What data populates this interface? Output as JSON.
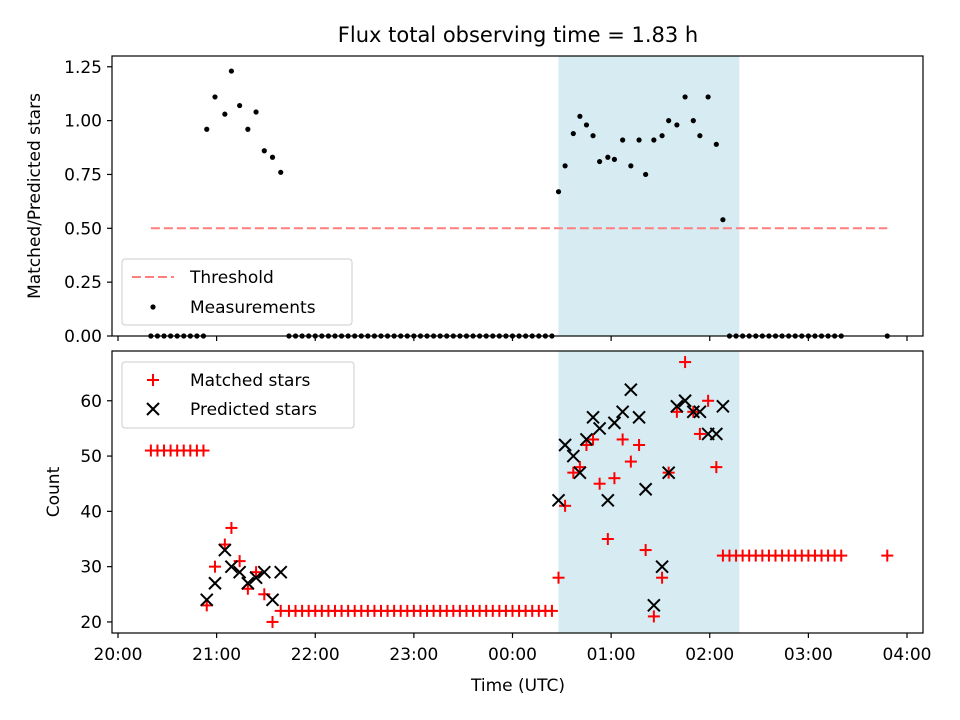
{
  "figure": {
    "title": "Flux total observing time = 1.83 h",
    "xlabel": "Time (UTC)"
  },
  "chart_data": [
    {
      "type": "scatter",
      "ylabel": "Matched/Predicted stars",
      "xlim": [
        "20:00",
        "04:15"
      ],
      "ylim": [
        0,
        1.3
      ],
      "yticks": [
        "0.00",
        "0.25",
        "0.50",
        "0.75",
        "1.00",
        "1.25"
      ],
      "grid": false,
      "legend": "lower-left",
      "highlight_span": {
        "start": "00:28",
        "end": "02:18",
        "color": "#add8e6"
      },
      "threshold": {
        "name": "Threshold",
        "value": 0.5,
        "x_start": "20:20",
        "x_end": "03:48",
        "color": "#ff7f7f"
      },
      "series": [
        {
          "name": "Measurements",
          "color": "#000000",
          "points": [
            [
              "20:20",
              0
            ],
            [
              "20:24",
              0
            ],
            [
              "20:28",
              0
            ],
            [
              "20:32",
              0
            ],
            [
              "20:36",
              0
            ],
            [
              "20:40",
              0
            ],
            [
              "20:44",
              0
            ],
            [
              "20:48",
              0
            ],
            [
              "20:52",
              0
            ],
            [
              "20:54",
              0.96
            ],
            [
              "20:59",
              1.11
            ],
            [
              "21:05",
              1.03
            ],
            [
              "21:09",
              1.23
            ],
            [
              "21:14",
              1.07
            ],
            [
              "21:19",
              0.96
            ],
            [
              "21:24",
              1.04
            ],
            [
              "21:29",
              0.86
            ],
            [
              "21:34",
              0.83
            ],
            [
              "21:39",
              0.76
            ],
            [
              "21:44",
              0
            ],
            [
              "21:48",
              0
            ],
            [
              "21:52",
              0
            ],
            [
              "21:56",
              0
            ],
            [
              "22:00",
              0
            ],
            [
              "22:04",
              0
            ],
            [
              "22:08",
              0
            ],
            [
              "22:12",
              0
            ],
            [
              "22:16",
              0
            ],
            [
              "22:20",
              0
            ],
            [
              "22:24",
              0
            ],
            [
              "22:28",
              0
            ],
            [
              "22:32",
              0
            ],
            [
              "22:36",
              0
            ],
            [
              "22:40",
              0
            ],
            [
              "22:44",
              0
            ],
            [
              "22:48",
              0
            ],
            [
              "22:52",
              0
            ],
            [
              "22:56",
              0
            ],
            [
              "23:00",
              0
            ],
            [
              "23:04",
              0
            ],
            [
              "23:08",
              0
            ],
            [
              "23:12",
              0
            ],
            [
              "23:16",
              0
            ],
            [
              "23:20",
              0
            ],
            [
              "23:24",
              0
            ],
            [
              "23:28",
              0
            ],
            [
              "23:32",
              0
            ],
            [
              "23:36",
              0
            ],
            [
              "23:40",
              0
            ],
            [
              "23:44",
              0
            ],
            [
              "23:48",
              0
            ],
            [
              "23:52",
              0
            ],
            [
              "23:56",
              0
            ],
            [
              "00:00",
              0
            ],
            [
              "00:04",
              0
            ],
            [
              "00:08",
              0
            ],
            [
              "00:12",
              0
            ],
            [
              "00:16",
              0
            ],
            [
              "00:20",
              0
            ],
            [
              "00:24",
              0
            ],
            [
              "00:28",
              0.67
            ],
            [
              "00:32",
              0.79
            ],
            [
              "00:37",
              0.94
            ],
            [
              "00:41",
              1.02
            ],
            [
              "00:45",
              0.98
            ],
            [
              "00:49",
              0.93
            ],
            [
              "00:53",
              0.81
            ],
            [
              "00:58",
              0.83
            ],
            [
              "01:02",
              0.82
            ],
            [
              "01:07",
              0.91
            ],
            [
              "01:12",
              0.79
            ],
            [
              "01:17",
              0.91
            ],
            [
              "01:21",
              0.75
            ],
            [
              "01:26",
              0.91
            ],
            [
              "01:31",
              0.93
            ],
            [
              "01:35",
              1.0
            ],
            [
              "01:40",
              0.98
            ],
            [
              "01:45",
              1.11
            ],
            [
              "01:50",
              1.0
            ],
            [
              "01:54",
              0.93
            ],
            [
              "01:59",
              1.11
            ],
            [
              "02:04",
              0.89
            ],
            [
              "02:08",
              0.54
            ],
            [
              "02:12",
              0
            ],
            [
              "02:16",
              0
            ],
            [
              "02:20",
              0
            ],
            [
              "02:24",
              0
            ],
            [
              "02:28",
              0
            ],
            [
              "02:32",
              0
            ],
            [
              "02:36",
              0
            ],
            [
              "02:40",
              0
            ],
            [
              "02:44",
              0
            ],
            [
              "02:48",
              0
            ],
            [
              "02:52",
              0
            ],
            [
              "02:56",
              0
            ],
            [
              "03:00",
              0
            ],
            [
              "03:04",
              0
            ],
            [
              "03:08",
              0
            ],
            [
              "03:12",
              0
            ],
            [
              "03:16",
              0
            ],
            [
              "03:20",
              0
            ],
            [
              "03:48",
              0
            ]
          ]
        }
      ]
    },
    {
      "type": "scatter",
      "ylabel": "Count",
      "xlim": [
        "20:00",
        "04:15"
      ],
      "ylim": [
        18,
        69
      ],
      "yticks": [
        "20",
        "30",
        "40",
        "50",
        "60"
      ],
      "xticks": [
        "20:00",
        "21:00",
        "22:00",
        "23:00",
        "00:00",
        "01:00",
        "02:00",
        "03:00",
        "04:00"
      ],
      "grid": false,
      "legend": "upper-left",
      "highlight_span": {
        "start": "00:28",
        "end": "02:18",
        "color": "#add8e6"
      },
      "series": [
        {
          "name": "Matched stars",
          "marker": "+",
          "color": "#ff0000",
          "points": [
            [
              "20:20",
              51
            ],
            [
              "20:24",
              51
            ],
            [
              "20:28",
              51
            ],
            [
              "20:32",
              51
            ],
            [
              "20:36",
              51
            ],
            [
              "20:40",
              51
            ],
            [
              "20:44",
              51
            ],
            [
              "20:48",
              51
            ],
            [
              "20:52",
              51
            ],
            [
              "20:54",
              23
            ],
            [
              "20:59",
              30
            ],
            [
              "21:05",
              34
            ],
            [
              "21:09",
              37
            ],
            [
              "21:14",
              31
            ],
            [
              "21:19",
              26
            ],
            [
              "21:24",
              29
            ],
            [
              "21:29",
              25
            ],
            [
              "21:34",
              20
            ],
            [
              "21:39",
              22
            ],
            [
              "21:44",
              22
            ],
            [
              "21:48",
              22
            ],
            [
              "21:52",
              22
            ],
            [
              "21:56",
              22
            ],
            [
              "22:00",
              22
            ],
            [
              "22:04",
              22
            ],
            [
              "22:08",
              22
            ],
            [
              "22:12",
              22
            ],
            [
              "22:16",
              22
            ],
            [
              "22:20",
              22
            ],
            [
              "22:24",
              22
            ],
            [
              "22:28",
              22
            ],
            [
              "22:32",
              22
            ],
            [
              "22:36",
              22
            ],
            [
              "22:40",
              22
            ],
            [
              "22:44",
              22
            ],
            [
              "22:48",
              22
            ],
            [
              "22:52",
              22
            ],
            [
              "22:56",
              22
            ],
            [
              "23:00",
              22
            ],
            [
              "23:04",
              22
            ],
            [
              "23:08",
              22
            ],
            [
              "23:12",
              22
            ],
            [
              "23:16",
              22
            ],
            [
              "23:20",
              22
            ],
            [
              "23:24",
              22
            ],
            [
              "23:28",
              22
            ],
            [
              "23:32",
              22
            ],
            [
              "23:36",
              22
            ],
            [
              "23:40",
              22
            ],
            [
              "23:44",
              22
            ],
            [
              "23:48",
              22
            ],
            [
              "23:52",
              22
            ],
            [
              "23:56",
              22
            ],
            [
              "00:00",
              22
            ],
            [
              "00:04",
              22
            ],
            [
              "00:08",
              22
            ],
            [
              "00:12",
              22
            ],
            [
              "00:16",
              22
            ],
            [
              "00:20",
              22
            ],
            [
              "00:24",
              22
            ],
            [
              "00:28",
              28
            ],
            [
              "00:32",
              41
            ],
            [
              "00:37",
              47
            ],
            [
              "00:41",
              48
            ],
            [
              "00:45",
              52
            ],
            [
              "00:49",
              53
            ],
            [
              "00:53",
              45
            ],
            [
              "00:58",
              35
            ],
            [
              "01:02",
              46
            ],
            [
              "01:07",
              53
            ],
            [
              "01:12",
              49
            ],
            [
              "01:17",
              52
            ],
            [
              "01:21",
              33
            ],
            [
              "01:26",
              21
            ],
            [
              "01:31",
              28
            ],
            [
              "01:35",
              47
            ],
            [
              "01:40",
              58
            ],
            [
              "01:45",
              67
            ],
            [
              "01:50",
              58
            ],
            [
              "01:54",
              54
            ],
            [
              "01:59",
              60
            ],
            [
              "02:04",
              48
            ],
            [
              "02:08",
              32
            ],
            [
              "02:12",
              32
            ],
            [
              "02:16",
              32
            ],
            [
              "02:20",
              32
            ],
            [
              "02:24",
              32
            ],
            [
              "02:28",
              32
            ],
            [
              "02:32",
              32
            ],
            [
              "02:36",
              32
            ],
            [
              "02:40",
              32
            ],
            [
              "02:44",
              32
            ],
            [
              "02:48",
              32
            ],
            [
              "02:52",
              32
            ],
            [
              "02:56",
              32
            ],
            [
              "03:00",
              32
            ],
            [
              "03:04",
              32
            ],
            [
              "03:08",
              32
            ],
            [
              "03:12",
              32
            ],
            [
              "03:16",
              32
            ],
            [
              "03:20",
              32
            ],
            [
              "03:48",
              32
            ]
          ]
        },
        {
          "name": "Predicted stars",
          "marker": "x",
          "color": "#000000",
          "points": [
            [
              "20:54",
              24
            ],
            [
              "20:59",
              27
            ],
            [
              "21:05",
              33
            ],
            [
              "21:09",
              30
            ],
            [
              "21:14",
              29
            ],
            [
              "21:19",
              27
            ],
            [
              "21:24",
              28
            ],
            [
              "21:29",
              29
            ],
            [
              "21:34",
              24
            ],
            [
              "21:39",
              29
            ],
            [
              "00:28",
              42
            ],
            [
              "00:32",
              52
            ],
            [
              "00:37",
              50
            ],
            [
              "00:41",
              47
            ],
            [
              "00:45",
              53
            ],
            [
              "00:49",
              57
            ],
            [
              "00:53",
              55
            ],
            [
              "00:58",
              42
            ],
            [
              "01:02",
              56
            ],
            [
              "01:07",
              58
            ],
            [
              "01:12",
              62
            ],
            [
              "01:17",
              57
            ],
            [
              "01:21",
              44
            ],
            [
              "01:26",
              23
            ],
            [
              "01:31",
              30
            ],
            [
              "01:35",
              47
            ],
            [
              "01:40",
              59
            ],
            [
              "01:45",
              60
            ],
            [
              "01:50",
              58
            ],
            [
              "01:54",
              58
            ],
            [
              "01:59",
              54
            ],
            [
              "02:04",
              54
            ],
            [
              "02:08",
              59
            ]
          ]
        }
      ]
    }
  ]
}
